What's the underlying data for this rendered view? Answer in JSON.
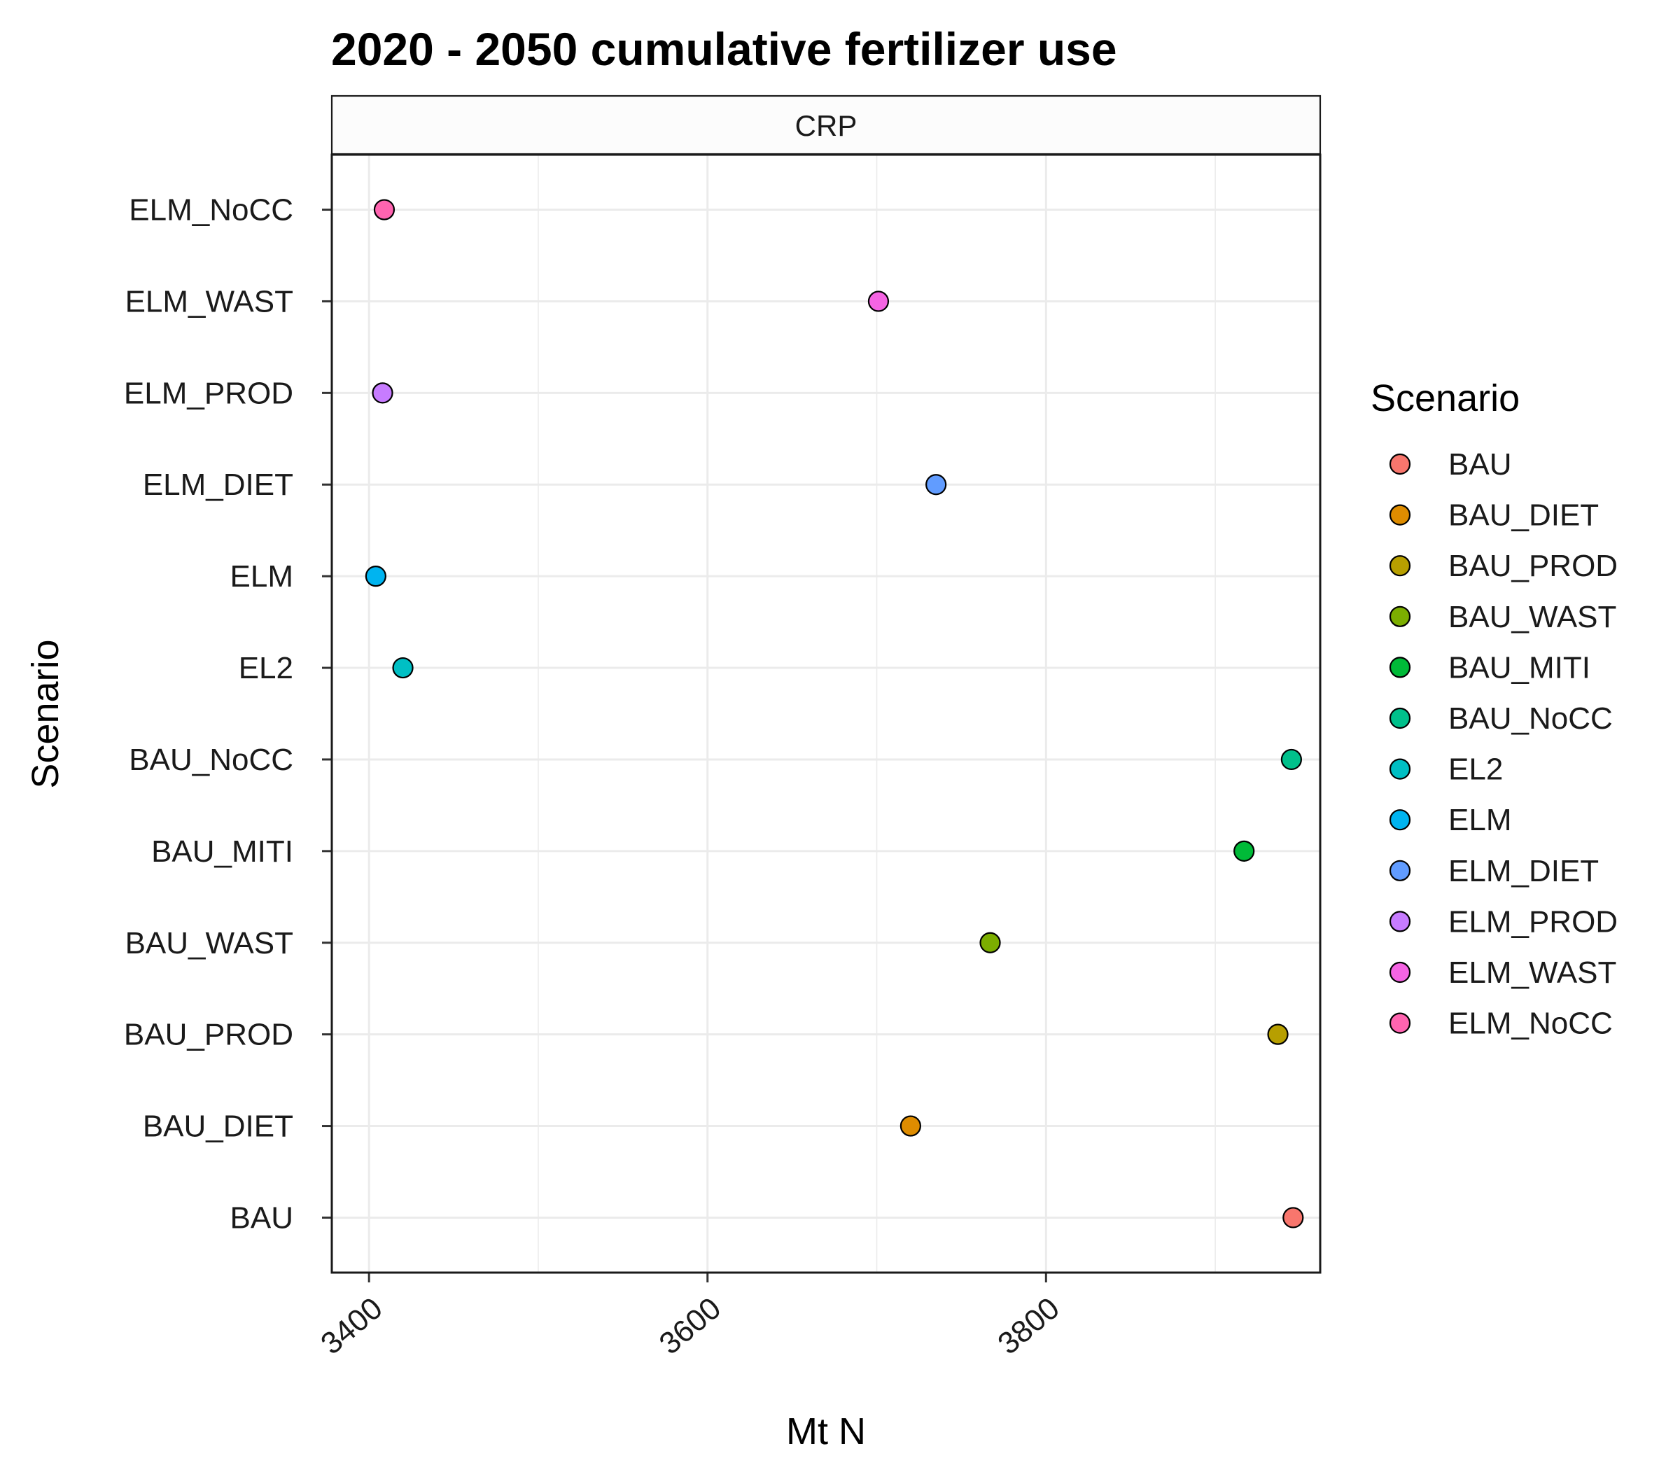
{
  "chart_data": {
    "type": "scatter",
    "title": "2020 - 2050 cumulative fertilizer use",
    "facet": "CRP",
    "xlabel": "Mt N",
    "ylabel": "Scenario",
    "xlim": [
      3378,
      3962
    ],
    "x_ticks": [
      3400,
      3600,
      3800
    ],
    "grid": true,
    "legend_title": "Scenario",
    "legend_position": "right",
    "categories": [
      "BAU",
      "BAU_DIET",
      "BAU_PROD",
      "BAU_WAST",
      "BAU_MITI",
      "BAU_NoCC",
      "EL2",
      "ELM",
      "ELM_DIET",
      "ELM_PROD",
      "ELM_WAST",
      "ELM_NoCC"
    ],
    "colors": [
      "#F8766D",
      "#DE8C00",
      "#B79F00",
      "#7CAE00",
      "#00BA38",
      "#00C08B",
      "#00BFC4",
      "#00B4F0",
      "#619CFF",
      "#C77CFF",
      "#F564E3",
      "#FF64B0"
    ],
    "values": [
      3946,
      3720,
      3937,
      3767,
      3917,
      3945,
      3420,
      3404,
      3735,
      3408,
      3701,
      3409
    ]
  }
}
